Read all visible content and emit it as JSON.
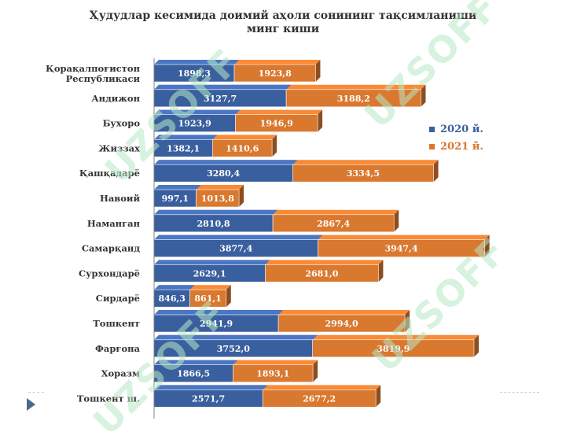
{
  "chart_data": {
    "type": "bar",
    "orientation": "horizontal",
    "style": "3d-stacked",
    "title": "Ҳудудлар кесимида доимий аҳоли сонининг тақсимланиши",
    "subtitle": "минг киши",
    "categories": [
      "Қорақалпоғистон Республикаси",
      "Андижон",
      "Бухоро",
      "Жиззах",
      "Қашқадарё",
      "Навоий",
      "Наманган",
      "Самарқанд",
      "Сурхондарё",
      "Сирдарё",
      "Тошкент",
      "Фарғона",
      "Хоразм",
      "Тошкент ш."
    ],
    "series": [
      {
        "name": "2020 й.",
        "color": "#3a5f9e",
        "values": [
          1898.3,
          3127.7,
          1923.9,
          1382.1,
          3280.4,
          997.1,
          2810.8,
          3877.4,
          2629.1,
          846.3,
          2941.9,
          3752.0,
          1866.5,
          2571.7
        ],
        "labels": [
          "1898,3",
          "3127,7",
          "1923,9",
          "1382,1",
          "3280,4",
          "997,1",
          "2810,8",
          "3877,4",
          "2629,1",
          "846,3",
          "2941,9",
          "3752,0",
          "1866,5",
          "2571,7"
        ]
      },
      {
        "name": "2021 й.",
        "color": "#d9782f",
        "values": [
          1923.8,
          3188.2,
          1946.9,
          1410.6,
          3334.5,
          1013.8,
          2867.4,
          3947.4,
          2681.0,
          861.1,
          2994.0,
          3819.9,
          1893.1,
          2677.2
        ],
        "labels": [
          "1923,8",
          "3188,2",
          "1946,9",
          "1410,6",
          "3334,5",
          "1013,8",
          "2867,4",
          "3947,4",
          "2681,0",
          "861,1",
          "2994,0",
          "3819,9",
          "1893,1",
          "2677,2"
        ]
      }
    ],
    "legend_position": "right",
    "grid": false,
    "watermark": "UZSOFF"
  }
}
